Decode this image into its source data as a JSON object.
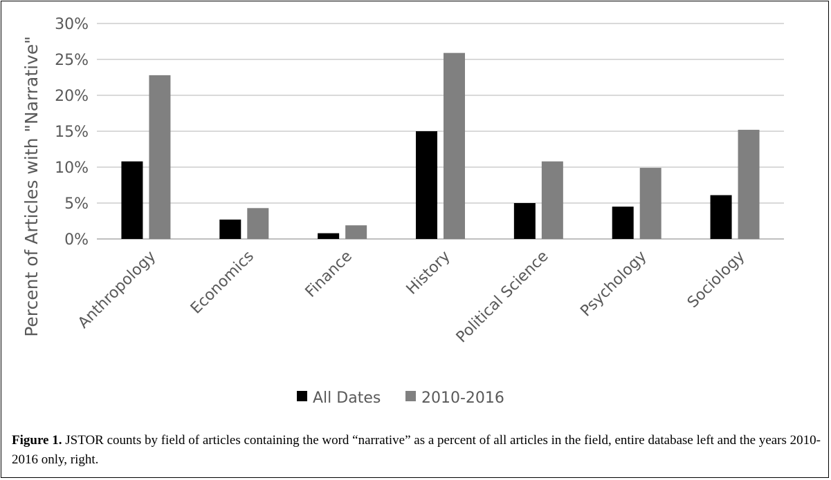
{
  "chart_data": {
    "type": "bar",
    "categories": [
      "Anthropology",
      "Economics",
      "Finance",
      "History",
      "Political Science",
      "Psychology",
      "Sociology"
    ],
    "series": [
      {
        "name": "All Dates",
        "color": "#000000",
        "values": [
          10.8,
          2.7,
          0.8,
          15.0,
          5.0,
          4.5,
          6.1
        ]
      },
      {
        "name": "2010-2016",
        "color": "#808080",
        "values": [
          22.8,
          4.3,
          1.9,
          25.9,
          10.8,
          9.9,
          15.2
        ]
      }
    ],
    "ylabel": "Percent of Articles with \"Narrative\"",
    "xlabel": "",
    "ylim": [
      0,
      30
    ],
    "yticks": [
      "0%",
      "5%",
      "10%",
      "15%",
      "20%",
      "25%",
      "30%"
    ],
    "grid": true,
    "legend_position": "bottom"
  },
  "caption": {
    "label": "Figure 1.",
    "text": " JSTOR counts by field of articles containing the word “narrative” as a percent of all articles in the field, entire database left and the years 2010-2016 only, right."
  }
}
